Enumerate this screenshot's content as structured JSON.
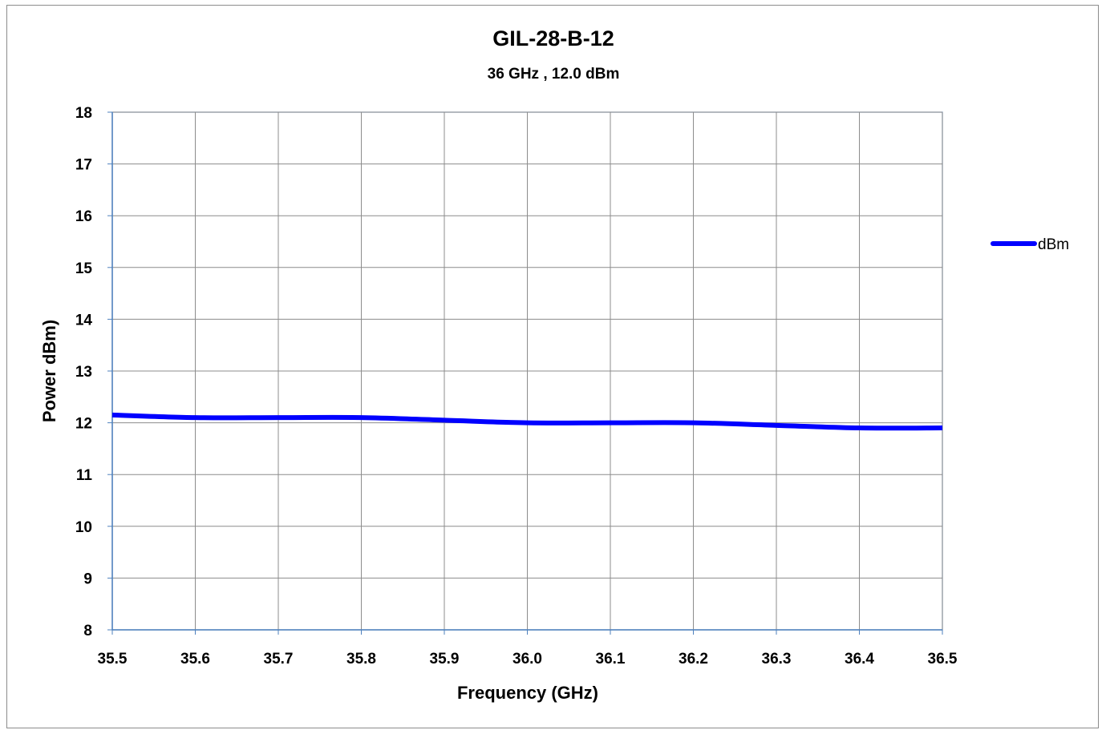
{
  "chart_data": {
    "type": "line",
    "title": "GIL-28-B-12",
    "subtitle": "36 GHz , 12.0 dBm",
    "xlabel": "Frequency  (GHz)",
    "ylabel": "Power dBm)",
    "xlim": [
      35.5,
      36.5
    ],
    "ylim": [
      8,
      18
    ],
    "x_ticks": [
      "35.5",
      "35.6",
      "35.7",
      "35.8",
      "35.9",
      "36.0",
      "36.1",
      "36.2",
      "36.3",
      "36.4",
      "36.5"
    ],
    "y_ticks": [
      "8",
      "9",
      "10",
      "11",
      "12",
      "13",
      "14",
      "15",
      "16",
      "17",
      "18"
    ],
    "grid": true,
    "legend_position": "right",
    "series": [
      {
        "name": "dBm",
        "color": "#0000ff",
        "x": [
          35.5,
          35.6,
          35.7,
          35.8,
          35.9,
          36.0,
          36.1,
          36.2,
          36.3,
          36.4,
          36.5
        ],
        "y": [
          12.15,
          12.1,
          12.1,
          12.1,
          12.05,
          12.0,
          12.0,
          12.0,
          11.95,
          11.9,
          11.9
        ]
      }
    ]
  }
}
